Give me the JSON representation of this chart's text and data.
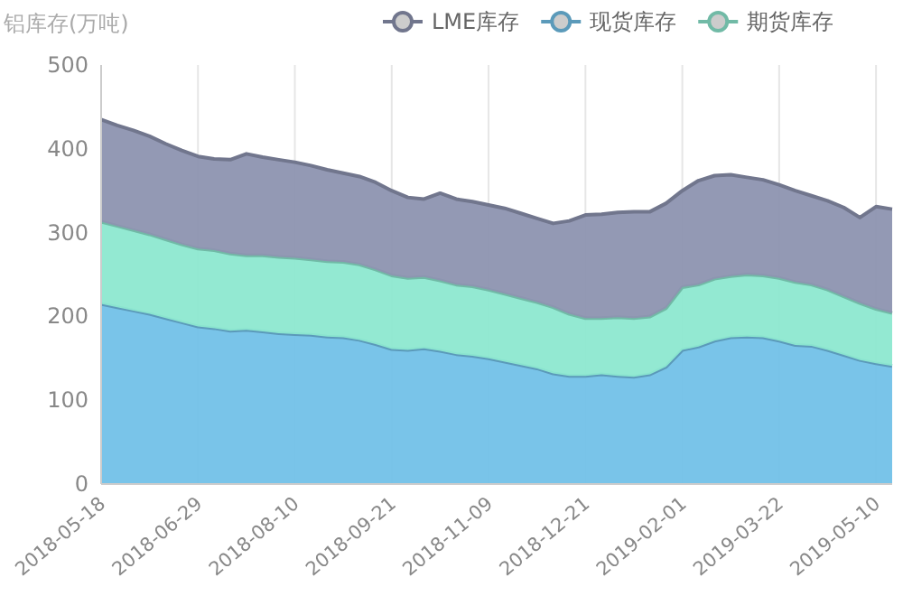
{
  "chart_data": {
    "type": "area",
    "stacked": true,
    "ylabel": "铝库存(万吨)",
    "categories": [
      "2018-05-18",
      null,
      null,
      null,
      null,
      null,
      "2018-06-29",
      null,
      null,
      null,
      null,
      null,
      "2018-08-10",
      null,
      null,
      null,
      null,
      null,
      "2018-09-21",
      null,
      null,
      null,
      null,
      null,
      "2018-11-09",
      null,
      null,
      null,
      null,
      null,
      "2018-12-21",
      null,
      null,
      null,
      null,
      null,
      "2019-02-01",
      null,
      null,
      null,
      null,
      null,
      "2019-03-22",
      null,
      null,
      null,
      null,
      null,
      "2019-05-10",
      null
    ],
    "series": [
      {
        "name": "现货库存",
        "color": "#72c1e8",
        "values": [
          215,
          211,
          207,
          203,
          198,
          193,
          188,
          186,
          183,
          184,
          182,
          180,
          179,
          178,
          176,
          175,
          172,
          167,
          161,
          160,
          162,
          159,
          155,
          153,
          150,
          146,
          142,
          138,
          132,
          129,
          129,
          131,
          129,
          128,
          131,
          140,
          160,
          164,
          171,
          175,
          176,
          175,
          171,
          166,
          165,
          160,
          154,
          148,
          144,
          141
        ]
      },
      {
        "name": "期货库存",
        "color": "#8de8d0",
        "values": [
          98,
          97,
          96,
          95,
          94,
          93,
          93,
          93,
          92,
          89,
          91,
          91,
          91,
          90,
          90,
          90,
          90,
          89,
          88,
          86,
          85,
          84,
          83,
          83,
          82,
          81,
          80,
          79,
          79,
          74,
          69,
          67,
          70,
          70,
          69,
          70,
          75,
          74,
          74,
          73,
          74,
          74,
          75,
          75,
          73,
          72,
          70,
          68,
          65,
          63
        ]
      },
      {
        "name": "LME库存",
        "color": "#8d93b0",
        "values": [
          122,
          120,
          119,
          117,
          114,
          112,
          110,
          109,
          112,
          121,
          117,
          116,
          114,
          112,
          109,
          106,
          105,
          104,
          101,
          96,
          93,
          104,
          102,
          101,
          101,
          102,
          101,
          100,
          100,
          111,
          123,
          124,
          125,
          127,
          125,
          125,
          115,
          124,
          123,
          121,
          116,
          114,
          111,
          109,
          106,
          106,
          106,
          102,
          122,
          124
        ]
      }
    ],
    "ylim": [
      0,
      500
    ],
    "yticks": [
      0,
      100,
      200,
      300,
      400,
      500
    ],
    "grid": "x",
    "legend": "top right",
    "marker": "none"
  }
}
